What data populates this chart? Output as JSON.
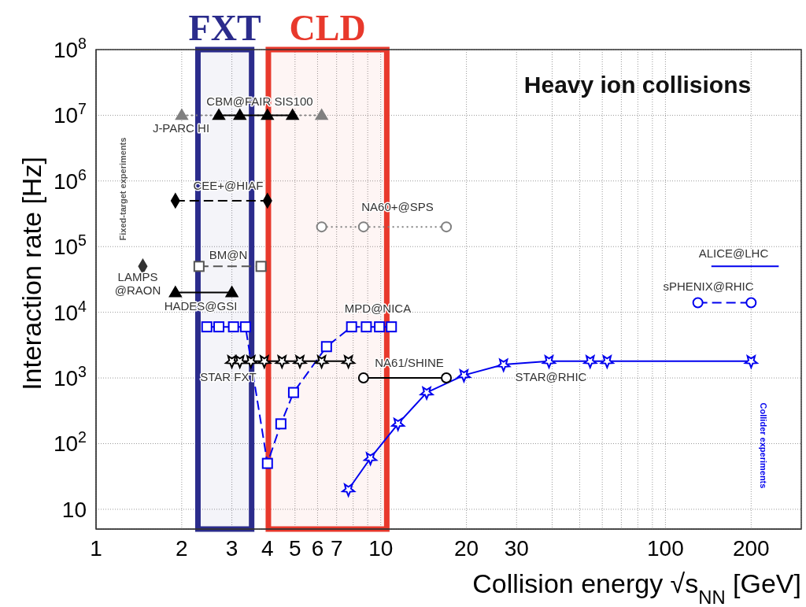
{
  "chart_data": {
    "type": "line",
    "title": "Heavy ion collisions",
    "xlabel": "Collision energy √s$_{NN}$ [GeV]",
    "ylabel": "Interaction rate [Hz]",
    "log": "xy",
    "grid": true,
    "xlim": [
      1,
      300
    ],
    "ylim": [
      5,
      100000000
    ],
    "xticks": [
      1,
      2,
      3,
      4,
      5,
      6,
      7,
      {
        "value": 8,
        "label": null
      },
      {
        "value": 9,
        "label": null
      },
      10,
      20,
      30,
      {
        "value": 40,
        "label": null
      },
      {
        "value": 50,
        "label": null
      },
      {
        "value": 60,
        "label": null
      },
      {
        "value": 70,
        "label": null
      },
      {
        "value": 80,
        "label": null
      },
      {
        "value": 90,
        "label": null
      },
      100,
      200
    ],
    "yticks": [
      {
        "value": 10,
        "label": "10"
      },
      {
        "value": 100,
        "label": "10$^{2}$"
      },
      {
        "value": 1000,
        "label": "10$^{3}$"
      },
      {
        "value": 10000,
        "label": "10$^{4}$"
      },
      {
        "value": 100000,
        "label": "10$^{5}$"
      },
      {
        "value": 1000000,
        "label": "10$^{6}$"
      },
      {
        "value": 10000000,
        "label": "10$^{7}$"
      },
      {
        "value": 100000000,
        "label": "10$^{8}$"
      }
    ],
    "bands": [
      {
        "axis": "x",
        "from": 2.28,
        "to": 3.52,
        "label": "FXT",
        "color": "#2b2c8c"
      },
      {
        "axis": "x",
        "from": 4.03,
        "to": 10.5,
        "label": "CLD",
        "color": "#e8392c"
      }
    ],
    "annotations": [
      "Fixed-target experiments",
      "Collider experiments"
    ],
    "series": [
      {
        "name": "J-PARC HI",
        "color": "#808080",
        "marker": "triangle",
        "line_style": "dotted",
        "x": [
          2,
          6.2
        ],
        "values": [
          10000000,
          10000000
        ]
      },
      {
        "name": "CBM@FAIR SIS100",
        "color": "#000000",
        "marker": "triangle",
        "line_style": "solid",
        "x": [
          2.7,
          3.2,
          4,
          4.9
        ],
        "values": [
          10000000,
          10000000,
          10000000,
          10000000
        ]
      },
      {
        "name": "CEE+@HIAF",
        "color": "#000000",
        "marker": "diamond",
        "line_style": "dashed",
        "x": [
          1.9,
          4
        ],
        "values": [
          500000,
          500000
        ]
      },
      {
        "name": "NA60+@SPS",
        "color": "#808080",
        "marker": "circle",
        "line_style": "dotted",
        "x": [
          6.2,
          8.7,
          17
        ],
        "values": [
          200000,
          200000,
          200000
        ]
      },
      {
        "name": "BM@N",
        "color": "#555555",
        "marker": "square",
        "line_style": "dashed",
        "x": [
          2.3,
          3.8
        ],
        "values": [
          50000,
          50000
        ]
      },
      {
        "name": "LAMPS\n@RAON",
        "color": "#333333",
        "type": "scatter",
        "marker": "diamond",
        "x": [
          1.46
        ],
        "values": [
          50000
        ]
      },
      {
        "name": "HADES@GSI",
        "color": "#000000",
        "marker": "triangle",
        "line_style": "solid",
        "x": [
          1.9,
          3
        ],
        "values": [
          20000,
          20000
        ]
      },
      {
        "name": "MPD@NICA",
        "color": "#0000ee",
        "marker": "square",
        "line_style": "dashed",
        "x": [
          2.45,
          2.7,
          3.04,
          3.35,
          4,
          4.46,
          4.94,
          6.45,
          7.9,
          8.9,
          9.9,
          10.9
        ],
        "values": [
          6000,
          6000,
          6000,
          6000,
          50,
          200,
          600,
          3000,
          6000,
          6000,
          6000,
          6000
        ]
      },
      {
        "name": "STAR FXT",
        "color": "#000000",
        "marker": "star",
        "line_style": "solid",
        "x": [
          3,
          3.2,
          3.5,
          3.9,
          4.5,
          5.2,
          6.2,
          7.7
        ],
        "values": [
          1800,
          1800,
          1800,
          1800,
          1800,
          1800,
          1800,
          1800
        ]
      },
      {
        "name": "NA61/SHINE",
        "color": "#000000",
        "marker": "circle",
        "line_style": "solid",
        "x": [
          8.7,
          17
        ],
        "values": [
          1000,
          1000
        ]
      },
      {
        "name": "STAR@RHIC",
        "color": "#0000ee",
        "marker": "star",
        "line_style": "solid",
        "x": [
          7.7,
          9.2,
          11.5,
          14.5,
          19.6,
          27,
          39,
          54.4,
          62.4,
          200
        ],
        "values": [
          20,
          60,
          200,
          600,
          1100,
          1600,
          1800,
          1800,
          1800,
          1800
        ]
      },
      {
        "name": "sPHENIX@RHIC",
        "color": "#0000ee",
        "marker": "circle",
        "line_style": "dashed",
        "x": [
          130,
          200
        ],
        "values": [
          14000,
          14000
        ]
      },
      {
        "name": "ALICE@LHC",
        "color": "#0000ee",
        "marker": "none",
        "line_style": "solid",
        "x": [
          145,
          250
        ],
        "values": [
          50000,
          50000
        ]
      }
    ]
  }
}
